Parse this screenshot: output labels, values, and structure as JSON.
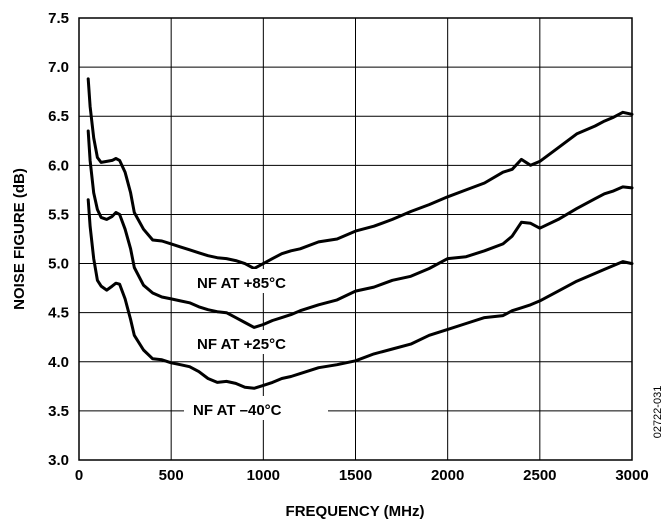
{
  "chart_data": {
    "type": "line",
    "title": "",
    "xlabel": "FREQUENCY (MHz)",
    "ylabel": "NOISE FIGURE (dB)",
    "xlim": [
      0,
      3000
    ],
    "ylim": [
      3.0,
      7.5
    ],
    "xticks": [
      "0",
      "500",
      "1000",
      "1500",
      "2000",
      "2500",
      "3000"
    ],
    "yticks": [
      "3.0",
      "3.5",
      "4.0",
      "4.5",
      "5.0",
      "5.5",
      "6.0",
      "6.5",
      "7.0",
      "7.5"
    ],
    "grid": true,
    "series": [
      {
        "name": "NF AT +85°C",
        "x": [
          50,
          60,
          80,
          100,
          120,
          150,
          180,
          200,
          220,
          250,
          280,
          300,
          350,
          400,
          450,
          500,
          550,
          600,
          650,
          700,
          750,
          800,
          850,
          900,
          950,
          1000,
          1050,
          1100,
          1150,
          1200,
          1300,
          1400,
          1500,
          1600,
          1700,
          1800,
          1900,
          2000,
          2100,
          2200,
          2300,
          2350,
          2400,
          2450,
          2500,
          2600,
          2700,
          2800,
          2850,
          2900,
          2950,
          3000
        ],
        "y": [
          6.88,
          6.6,
          6.28,
          6.08,
          6.03,
          6.04,
          6.05,
          6.07,
          6.05,
          5.93,
          5.72,
          5.52,
          5.35,
          5.24,
          5.23,
          5.2,
          5.17,
          5.14,
          5.11,
          5.08,
          5.06,
          5.05,
          5.03,
          5.0,
          4.95,
          5.0,
          5.05,
          5.1,
          5.13,
          5.15,
          5.22,
          5.25,
          5.33,
          5.38,
          5.45,
          5.53,
          5.6,
          5.68,
          5.75,
          5.82,
          5.93,
          5.96,
          6.06,
          6.0,
          6.04,
          6.18,
          6.32,
          6.4,
          6.45,
          6.49,
          6.54,
          6.52
        ]
      },
      {
        "name": "NF AT +25°C",
        "x": [
          50,
          60,
          80,
          100,
          120,
          150,
          180,
          200,
          220,
          250,
          280,
          300,
          350,
          400,
          450,
          500,
          550,
          600,
          650,
          700,
          750,
          800,
          850,
          900,
          950,
          1000,
          1050,
          1100,
          1150,
          1200,
          1300,
          1400,
          1500,
          1600,
          1700,
          1800,
          1900,
          2000,
          2100,
          2200,
          2300,
          2350,
          2400,
          2450,
          2500,
          2600,
          2700,
          2800,
          2850,
          2900,
          2950,
          3000
        ],
        "y": [
          6.35,
          6.05,
          5.72,
          5.55,
          5.47,
          5.45,
          5.48,
          5.52,
          5.5,
          5.35,
          5.15,
          4.96,
          4.78,
          4.7,
          4.66,
          4.64,
          4.62,
          4.6,
          4.56,
          4.53,
          4.51,
          4.5,
          4.45,
          4.4,
          4.35,
          4.38,
          4.42,
          4.45,
          4.48,
          4.52,
          4.58,
          4.63,
          4.72,
          4.76,
          4.83,
          4.87,
          4.95,
          5.05,
          5.07,
          5.13,
          5.2,
          5.28,
          5.42,
          5.41,
          5.36,
          5.45,
          5.56,
          5.66,
          5.71,
          5.74,
          5.78,
          5.77
        ]
      },
      {
        "name": "NF AT –40°C",
        "x": [
          50,
          60,
          80,
          100,
          120,
          150,
          180,
          200,
          220,
          250,
          280,
          300,
          350,
          400,
          450,
          500,
          550,
          600,
          650,
          700,
          750,
          800,
          850,
          900,
          950,
          1000,
          1050,
          1100,
          1150,
          1200,
          1300,
          1400,
          1500,
          1600,
          1700,
          1800,
          1900,
          2000,
          2100,
          2200,
          2300,
          2350,
          2400,
          2450,
          2500,
          2600,
          2700,
          2800,
          2850,
          2900,
          2950,
          3000
        ],
        "y": [
          5.65,
          5.38,
          5.05,
          4.83,
          4.77,
          4.73,
          4.77,
          4.8,
          4.79,
          4.64,
          4.43,
          4.27,
          4.12,
          4.03,
          4.02,
          3.99,
          3.97,
          3.95,
          3.9,
          3.83,
          3.79,
          3.8,
          3.78,
          3.74,
          3.73,
          3.76,
          3.79,
          3.83,
          3.85,
          3.88,
          3.94,
          3.97,
          4.01,
          4.08,
          4.13,
          4.18,
          4.27,
          4.33,
          4.39,
          4.45,
          4.47,
          4.52,
          4.55,
          4.58,
          4.62,
          4.72,
          4.82,
          4.9,
          4.94,
          4.98,
          5.02,
          5.0
        ]
      }
    ],
    "annotations": [
      "NF AT +85°C",
      "NF AT +25°C",
      "NF AT –40°C"
    ],
    "figure_id": "02722-031"
  }
}
